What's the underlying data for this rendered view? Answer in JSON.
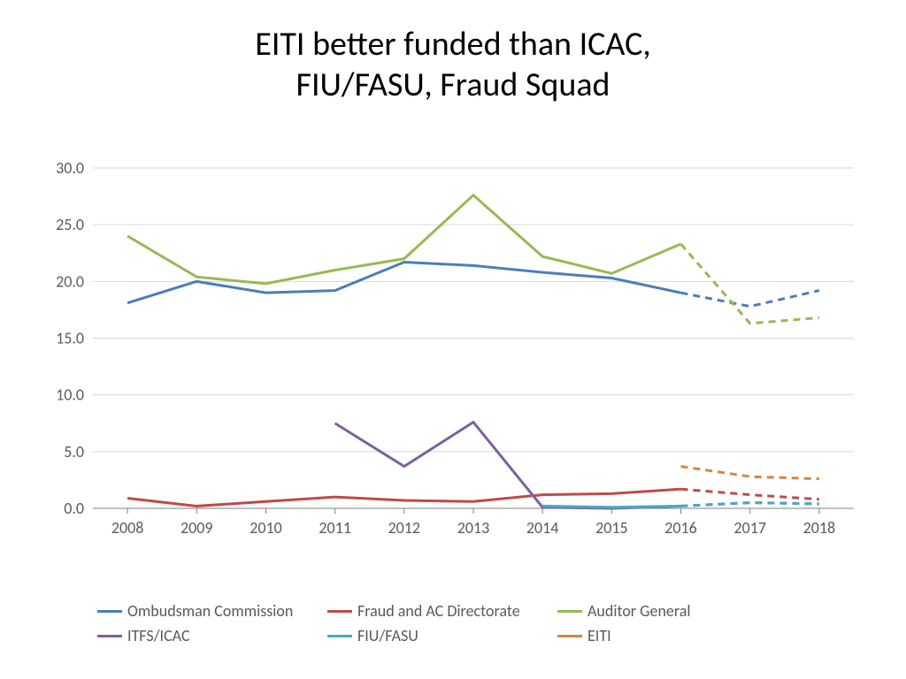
{
  "title_line1": "EITI better funded than ICAC,",
  "title_line2": "FIU/FASU, Fraud Squad",
  "chart": {
    "type": "line",
    "background_color": "#ffffff",
    "grid_color": "#d9d9d9",
    "axis_color": "#808080",
    "text_color": "#595959",
    "tick_fontsize": 18,
    "years": [
      "2008",
      "2009",
      "2010",
      "2011",
      "2012",
      "2013",
      "2014",
      "2015",
      "2016",
      "2017",
      "2018"
    ],
    "ylim": [
      0,
      30
    ],
    "ytick_step": 5,
    "ytick_labels": [
      "0.0",
      "5.0",
      "10.0",
      "15.0",
      "20.0",
      "25.0",
      "30.0"
    ],
    "line_width": 3,
    "dash_pattern": "8,6",
    "solid_count": 9,
    "series": [
      {
        "name": "Ombudsman Commission",
        "color": "#4a7ebb",
        "values": [
          18.1,
          20.0,
          19.0,
          19.2,
          21.7,
          21.4,
          20.8,
          20.3,
          19.0,
          17.8,
          19.2
        ]
      },
      {
        "name": "Fraud and AC Directorate",
        "color": "#be4b48",
        "values": [
          0.9,
          0.2,
          0.6,
          1.0,
          0.7,
          0.6,
          1.2,
          1.3,
          1.7,
          1.2,
          0.8
        ]
      },
      {
        "name": "Auditor General",
        "color": "#98b954",
        "values": [
          24.0,
          20.4,
          19.8,
          21.0,
          22.0,
          27.6,
          22.2,
          20.7,
          23.3,
          16.3,
          16.8
        ]
      },
      {
        "name": "ITFS/ICAC",
        "color": "#7d60a0",
        "values": [
          null,
          null,
          null,
          7.5,
          3.7,
          7.6,
          0.1,
          0.0,
          0.2,
          0.5,
          0.4
        ]
      },
      {
        "name": "FIU/FASU",
        "color": "#46aac5",
        "values": [
          null,
          null,
          null,
          null,
          null,
          null,
          0.2,
          0.1,
          0.2,
          0.5,
          0.4
        ]
      },
      {
        "name": "EITI",
        "color": "#db843d",
        "values": [
          null,
          null,
          null,
          null,
          null,
          null,
          null,
          null,
          3.7,
          2.8,
          2.6
        ]
      }
    ]
  },
  "legend": {
    "rows": [
      [
        "Ombudsman Commission",
        "Fraud and AC Directorate",
        "Auditor General"
      ],
      [
        "ITFS/ICAC",
        "FIU/FASU",
        "EITI"
      ]
    ]
  }
}
